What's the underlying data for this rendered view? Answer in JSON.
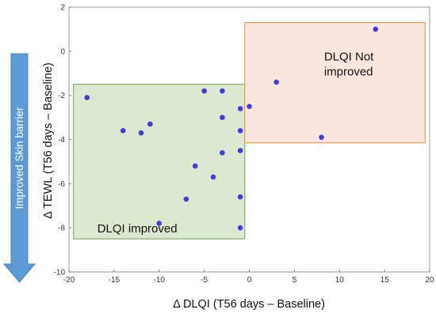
{
  "chart_data": {
    "type": "scatter",
    "xlabel": "Δ DLQI (T56 days – Baseline)",
    "ylabel": "Δ TEWL (T56 days – Baseline)",
    "xlim": [
      -20,
      20
    ],
    "ylim": [
      -10,
      2
    ],
    "x_ticks": [
      "-20",
      "-15",
      "-10",
      "-5",
      "0",
      "5",
      "10",
      "15",
      "20"
    ],
    "y_ticks": [
      "-10",
      "-8",
      "-6",
      "-4",
      "-2",
      "0",
      "2"
    ],
    "grid": false,
    "points": [
      {
        "x": -18,
        "y": -2.1
      },
      {
        "x": -14,
        "y": -3.6
      },
      {
        "x": -12,
        "y": -3.7
      },
      {
        "x": -11,
        "y": -3.3
      },
      {
        "x": -10,
        "y": -7.8
      },
      {
        "x": -7,
        "y": -6.7
      },
      {
        "x": -6,
        "y": -5.2
      },
      {
        "x": -5,
        "y": -1.8
      },
      {
        "x": -4,
        "y": -5.7
      },
      {
        "x": -3,
        "y": -1.8
      },
      {
        "x": -3,
        "y": -3.0
      },
      {
        "x": -3,
        "y": -4.6
      },
      {
        "x": -1,
        "y": -2.6
      },
      {
        "x": -1,
        "y": -3.6
      },
      {
        "x": -1,
        "y": -4.5
      },
      {
        "x": -1,
        "y": -6.6
      },
      {
        "x": -1,
        "y": -8.0
      },
      {
        "x": 0,
        "y": -2.5
      },
      {
        "x": 3,
        "y": -1.4
      },
      {
        "x": 8,
        "y": -3.9
      },
      {
        "x": 14,
        "y": 1.0
      }
    ],
    "point_color": "#3d3fd6",
    "regions": [
      {
        "label": "DLQI improved",
        "x": [
          -19.5,
          -0.5
        ],
        "y": [
          -8.5,
          -1.5
        ],
        "fill": "#dce8d0",
        "stroke": "#6aa84f"
      },
      {
        "label": "DLQI Not improved",
        "label_lines": [
          "DLQI Not",
          "improved"
        ],
        "x": [
          -0.5,
          19.5
        ],
        "y": [
          -4.15,
          1.3
        ],
        "fill": "#fbe6df",
        "stroke": "#e69138"
      }
    ],
    "side_annotation": {
      "text": "Improved Skin barrier",
      "direction": "down",
      "color": "#5b9bd5"
    }
  }
}
